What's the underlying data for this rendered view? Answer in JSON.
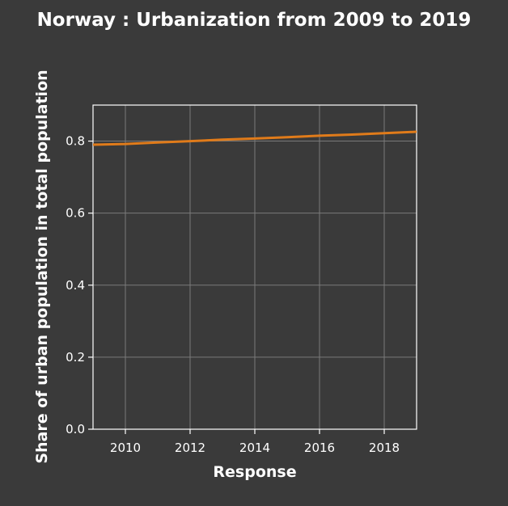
{
  "chart_data": {
    "type": "line",
    "title": "Norway : Urbanization from 2009 to 2019",
    "xlabel": "Response",
    "ylabel": "Share of urban population in total population",
    "xlim": [
      2009,
      2019
    ],
    "ylim": [
      0,
      0.9
    ],
    "xticks": [
      2010,
      2012,
      2014,
      2016,
      2018
    ],
    "xtick_labels": [
      "2010",
      "2012",
      "2014",
      "2016",
      "2018"
    ],
    "yticks": [
      0,
      0.2,
      0.4,
      0.6,
      0.8
    ],
    "ytick_labels": [
      "0.0",
      "0.2",
      "0.4",
      "0.6",
      "0.8"
    ],
    "grid": true,
    "series": [
      {
        "color": "#e07b1a",
        "x": [
          2009,
          2010,
          2011,
          2012,
          2013,
          2014,
          2015,
          2016,
          2017,
          2018,
          2019
        ],
        "y": [
          0.79,
          0.792,
          0.796,
          0.8,
          0.804,
          0.807,
          0.811,
          0.815,
          0.818,
          0.822,
          0.826
        ]
      }
    ]
  }
}
